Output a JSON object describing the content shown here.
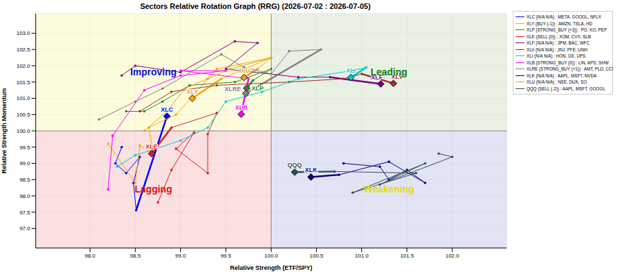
{
  "chart_data": {
    "type": "scatter",
    "title": "Sectors Relative Rotation Graph (RRG) (2026-07-02 : 2026-07-05)",
    "x_label": "Relative Strength (ETF/SPY)",
    "y_label": "Relative Strength Momentum",
    "xlim": [
      97.4,
      102.6
    ],
    "ylim": [
      96.4,
      103.6
    ],
    "xticks": [
      {
        "value": 98,
        "label": "98.0"
      },
      98.5,
      {
        "value": 99,
        "label": "99.0"
      },
      99.5,
      {
        "value": 100,
        "label": "100.0"
      },
      100.5,
      {
        "value": 101,
        "label": "101.0"
      },
      101.5,
      {
        "value": 102,
        "label": "102.0"
      }
    ],
    "yticks": [
      {
        "value": 97,
        "label": "97.0"
      },
      97.5,
      {
        "value": 98,
        "label": "98.0"
      },
      98.5,
      {
        "value": 99,
        "label": "99.0"
      },
      99.5,
      {
        "value": 100,
        "label": "100.0"
      },
      100.5,
      {
        "value": 101,
        "label": "101.0"
      },
      101.5,
      {
        "value": 102,
        "label": "102.0"
      },
      102.5,
      {
        "value": 103,
        "label": "103.0"
      }
    ],
    "grid": true,
    "legend": "right",
    "marker": "diamond",
    "center": {
      "x": 100,
      "y": 100
    },
    "quadrants": [
      {
        "label": "Improving",
        "color": "#1010d0"
      },
      {
        "label": "Leading",
        "color": "#108010"
      },
      {
        "label": "Lagging",
        "color": "#e01010"
      },
      {
        "label": "Weakening",
        "color": "#e0e000"
      }
    ],
    "series": [
      {
        "name": "XLC (N/A N/A) : META, GOOGL, NFLX",
        "label": "XLC",
        "color": "#0000ff",
        "x": [
          98.35,
          98.28,
          98.4,
          98.55,
          98.48,
          98.51,
          98.85
        ],
        "y": [
          99.5,
          99.0,
          98.7,
          99.2,
          98.4,
          97.56,
          100.45
        ]
      },
      {
        "name": "XLY (BUY (-1)) : AMZN, TSLA, HD",
        "label": "XLY",
        "color": "#ffa500",
        "x": [
          98.2,
          98.5,
          98.55,
          98.7,
          98.65,
          98.95,
          99.4,
          100.0,
          99.45,
          99.13
        ],
        "y": [
          99.6,
          98.4,
          99.55,
          99.3,
          100.1,
          100.5,
          101.9,
          102.25,
          101.6,
          101.0
        ]
      },
      {
        "name": "XLP (STRONG_BUY (+3)) : PG, KO, PEP",
        "label": "XLP",
        "color": "#228b22",
        "x": [
          98.4,
          98.6,
          98.8,
          99.1,
          99.6,
          100.0,
          99.8,
          99.73
        ],
        "y": [
          100.6,
          100.6,
          100.9,
          101.4,
          101.5,
          101.9,
          101.55,
          101.31
        ]
      },
      {
        "name": "XLE (SELL (0)) : XOM, CVX, SLB",
        "label": "XLE",
        "color": "#e41a1c",
        "x": [
          98.75,
          98.9,
          99.15,
          98.95,
          99.3,
          99.3,
          99.4,
          98.9,
          98.68
        ],
        "y": [
          97.8,
          98.8,
          99.95,
          99.45,
          98.7,
          99.9,
          100.55,
          100.1,
          99.3
        ]
      },
      {
        "name": "XLF (N/A N/A) : JPM, BAC, WFC",
        "label": "XLF",
        "color": "#800080",
        "x": [
          98.35,
          98.5,
          99.0,
          99.6,
          99.85,
          99.5,
          100.3,
          100.65,
          101.21
        ],
        "y": [
          101.7,
          102.0,
          101.8,
          102.75,
          102.7,
          101.9,
          101.65,
          101.65,
          101.44
        ]
      },
      {
        "name": "XLV (N/A N/A) : JNJ, PFE, UNH",
        "label": "XLV",
        "color": "#a52a2a",
        "x": [
          98.55,
          98.9,
          99.4,
          100.2,
          100.8,
          101.0,
          101.35
        ],
        "y": [
          100.6,
          101.2,
          101.4,
          101.5,
          101.6,
          101.75,
          101.46
        ]
      },
      {
        "name": "XLI (N/A N/A) : HON, GE, UPS",
        "label": "XLI",
        "color": "#00c8d0",
        "x": [
          98.3,
          98.5,
          99.0,
          99.3,
          99.5,
          99.9,
          100.3,
          100.9,
          101.05,
          100.88
        ],
        "y": [
          98.9,
          99.25,
          99.7,
          100.1,
          100.9,
          101.2,
          101.6,
          101.85,
          101.95,
          101.64
        ]
      },
      {
        "name": "XLB (STRONG_BUY (0)) : LIN, APD, SHW",
        "label": "XLB",
        "color": "#ff00ff",
        "x": [
          98.2,
          98.25,
          98.6,
          99.0,
          99.5,
          99.0,
          99.75,
          99.67
        ],
        "y": [
          98.2,
          99.85,
          101.25,
          101.7,
          101.85,
          101.85,
          101.6,
          100.51
        ]
      },
      {
        "name": "XLRE (STRONG_BUY (+1)) : AMT, PLD, CCI",
        "label": "XLRE",
        "color": "#808080",
        "x": [
          98.1,
          98.5,
          98.8,
          99.45,
          99.7,
          100.0,
          100.2,
          100.55,
          99.72
        ],
        "y": [
          100.35,
          100.9,
          101.3,
          102.35,
          101.95,
          101.75,
          102.45,
          102.5,
          101.15
        ]
      },
      {
        "name": "XLK (N/A N/A) : AAPL, MSFT, NVDA",
        "label": "XLK",
        "color": "#000080",
        "x": [
          100.8,
          101.2,
          101.3,
          101.5,
          101.7,
          101.3,
          100.75,
          100.44
        ],
        "y": [
          99.0,
          98.9,
          98.5,
          98.8,
          98.4,
          99.05,
          98.65,
          98.58
        ]
      },
      {
        "name": "XLU (N/A N/A) : NEE, DUK, SO",
        "label": "XLU",
        "color": "#daa520",
        "x": [
          98.6,
          98.85,
          99.05,
          99.3,
          99.55,
          100.0,
          99.85,
          99.7
        ],
        "y": [
          100.0,
          100.6,
          101.3,
          101.6,
          101.9,
          102.25,
          101.9,
          101.64
        ]
      },
      {
        "name": "QQQ (SELL (-2)) : AAPL, MSFT, GOOGL",
        "label": "QQQ",
        "color": "#2f4f4f",
        "x": [
          101.85,
          102.0,
          101.2,
          101.7,
          100.9,
          101.6,
          100.7,
          100.26
        ],
        "y": [
          99.3,
          99.2,
          98.35,
          99.0,
          98.1,
          98.7,
          98.75,
          98.73
        ]
      }
    ]
  }
}
